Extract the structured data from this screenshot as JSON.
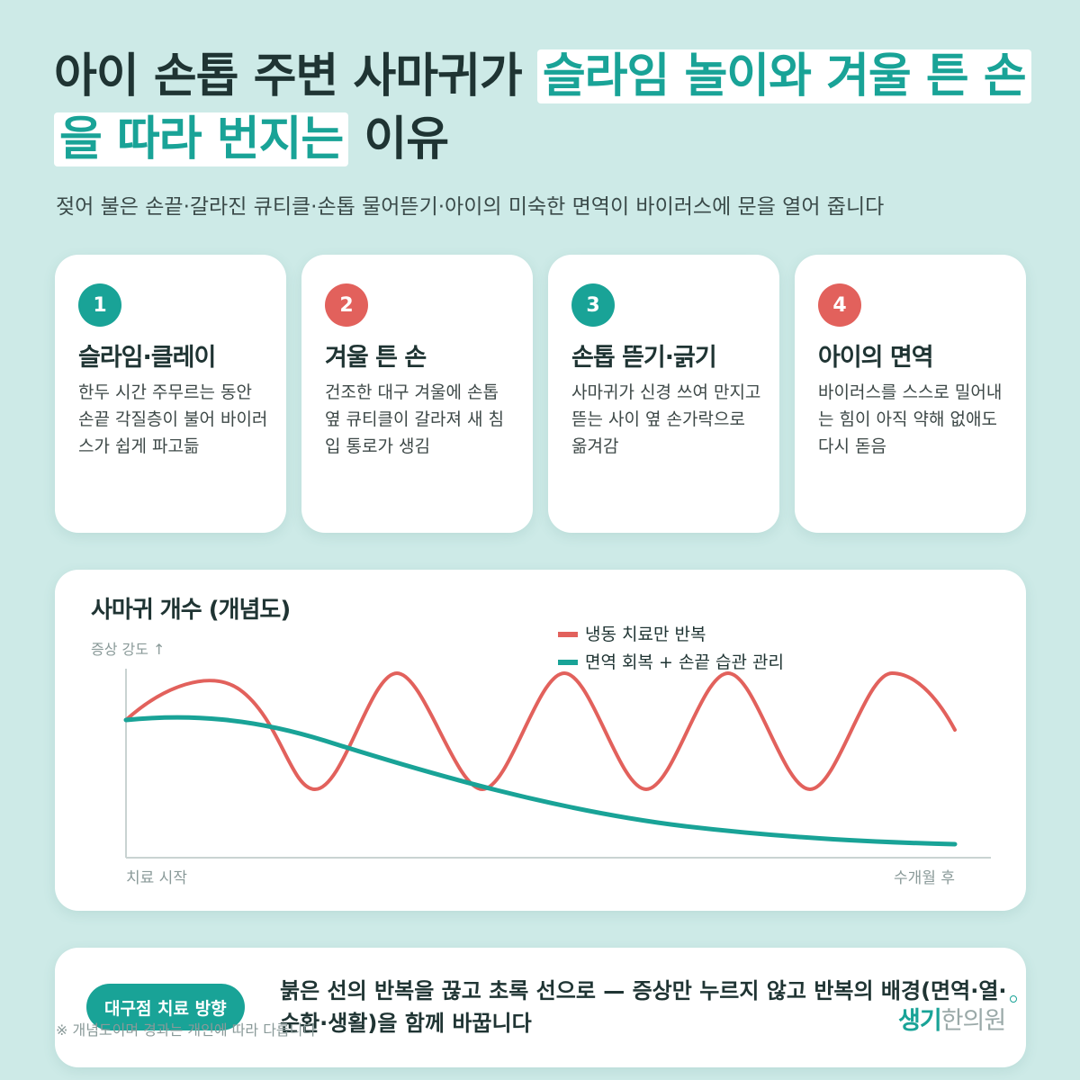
{
  "header": {
    "title_part1": "아이 손톱 주변 사마귀가 ",
    "title_highlight": "슬라임 놀이와 겨울 튼 손을 따라 번지는",
    "title_part2": " 이유",
    "subtitle": "젖어 불은 손끝·갈라진 큐티클·손톱 물어뜯기·아이의 미숙한 면역이 바이러스에 문을 열어 줍니다"
  },
  "cards": [
    {
      "number": "1",
      "title": "슬라임·클레이",
      "body": "한두 시간 주무르는 동안 손끝 각질층이 불어 바이러스가 쉽게 파고듦",
      "color": "#19a397"
    },
    {
      "number": "2",
      "title": "겨울 튼 손",
      "body": "건조한 대구 겨울에 손톱 옆 큐티클이 갈라져 새 침입 통로가 생김",
      "color": "#e2615c"
    },
    {
      "number": "3",
      "title": "손톱 뜯기·긁기",
      "body": "사마귀가 신경 쓰여 만지고 뜯는 사이 옆 손가락으로 옮겨감",
      "color": "#19a397"
    },
    {
      "number": "4",
      "title": "아이의 면역",
      "body": "바이러스를 스스로 밀어내는 힘이 아직 약해 없애도 다시 돋음",
      "color": "#e2615c"
    }
  ],
  "chart": {
    "title": "사마귀 개수 (개념도)",
    "y_axis_label": "증상 강도 ↑",
    "x_start_label": "치료 시작",
    "x_end_label": "수개월 후",
    "legend": [
      {
        "label": "냉동 치료만 반복",
        "color": "#e2615c"
      },
      {
        "label": "면역 회복 + 손끝 습관 관리",
        "color": "#19a397"
      }
    ]
  },
  "bottom": {
    "badge": "대구점 치료 방향",
    "text": "붉은 선의 반복을 끊고 초록 선으로 — 증상만 누르지 않고 반복의 배경(면역·열·순환·생활)을 함께 바꿉니다",
    "footnote": "※ 개념도이며 경과는 개인에 따라 다릅니다",
    "logo_part1": "생기",
    "logo_part2": "한의원"
  }
}
